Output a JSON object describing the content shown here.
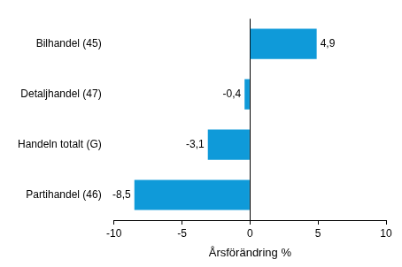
{
  "chart_data": {
    "type": "bar",
    "orientation": "horizontal",
    "categories": [
      "Bilhandel (45)",
      "Detaljhandel (47)",
      "Handeln totalt (G)",
      "Partihandel (46)"
    ],
    "values": [
      4.9,
      -0.4,
      -3.1,
      -8.5
    ],
    "value_labels": [
      "4,9",
      "-0,4",
      "-3,1",
      "-8,5"
    ],
    "color": "#0f9ad9",
    "x_label": "Årsförändring %",
    "xlim": [
      -10,
      10
    ],
    "xticks": [
      -10,
      -5,
      0,
      5,
      10
    ],
    "grid": false,
    "data_labels": true
  }
}
